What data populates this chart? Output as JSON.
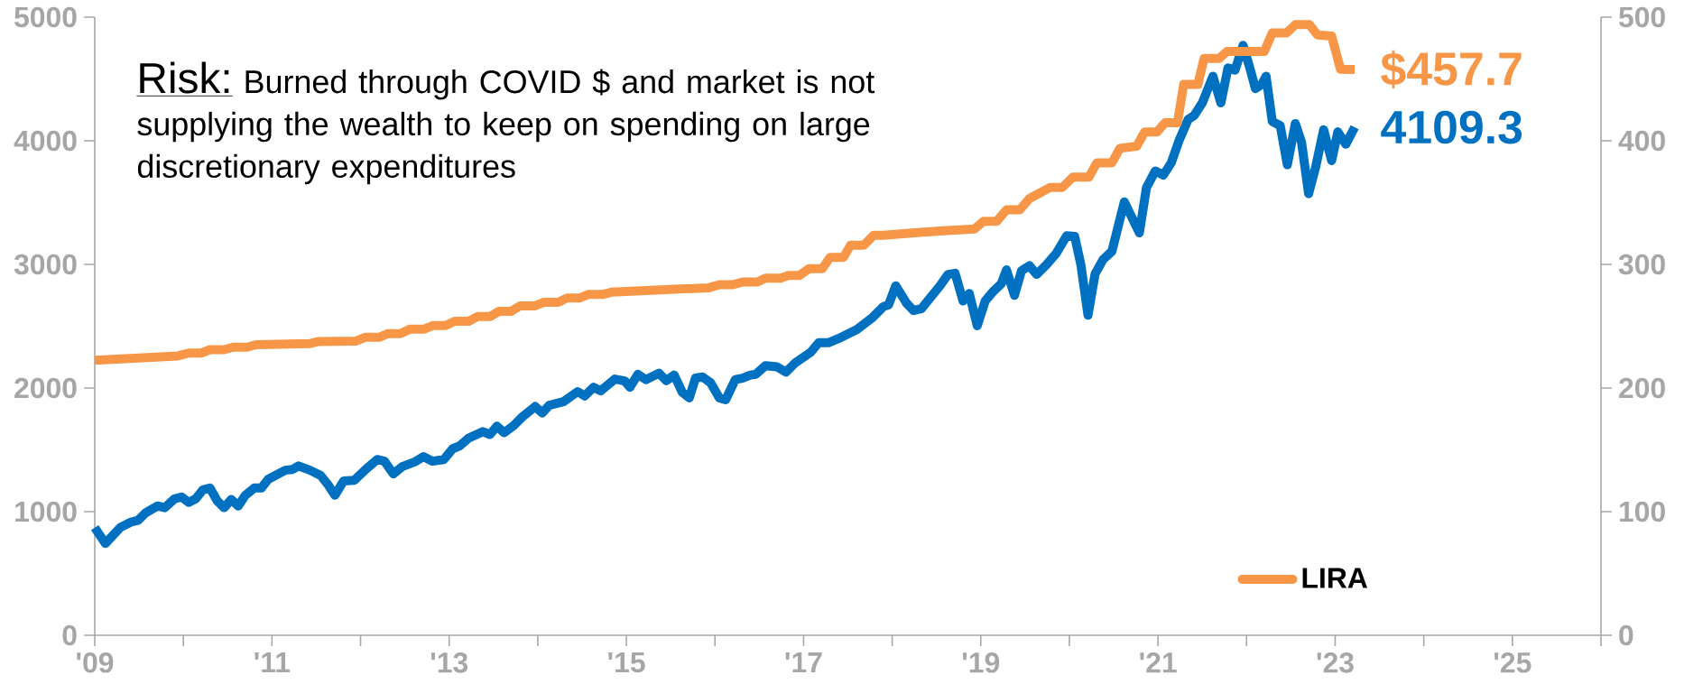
{
  "chart_data": {
    "type": "line",
    "annotations": [
      "Risk:",
      "Burned through COVID $ and market is not supplying the wealth to keep on spending on large discretionary expenditures"
    ],
    "xlim": [
      2009,
      2026
    ],
    "xticks": [
      {
        "value": 2009,
        "label": "'09"
      },
      {
        "value": 2010,
        "label": null
      },
      {
        "value": 2011,
        "label": "'11"
      },
      {
        "value": 2012,
        "label": null
      },
      {
        "value": 2013,
        "label": "'13"
      },
      {
        "value": 2014,
        "label": null
      },
      {
        "value": 2015,
        "label": "'15"
      },
      {
        "value": 2016,
        "label": null
      },
      {
        "value": 2017,
        "label": "'17"
      },
      {
        "value": 2018,
        "label": null
      },
      {
        "value": 2019,
        "label": "'19"
      },
      {
        "value": 2020,
        "label": null
      },
      {
        "value": 2021,
        "label": "'21"
      },
      {
        "value": 2022,
        "label": null
      },
      {
        "value": 2023,
        "label": "'23"
      },
      {
        "value": 2024,
        "label": null
      },
      {
        "value": 2025,
        "label": "'25"
      },
      {
        "value": 2026,
        "label": null
      }
    ],
    "ylim": [
      0,
      5000
    ],
    "yticks": [
      0,
      1000,
      2000,
      3000,
      4000,
      5000
    ],
    "y2lim": [
      0,
      500
    ],
    "y2ticks": [
      0,
      100,
      200,
      300,
      400,
      500
    ],
    "legend": "bottom right",
    "marker": "none",
    "series": [
      {
        "color": "#0070c0",
        "x": [
          2009.0,
          2009.12,
          2009.29,
          2009.41,
          2009.49,
          2009.57,
          2009.71,
          2009.79,
          2009.9,
          2009.98,
          2010.06,
          2010.14,
          2010.22,
          2010.3,
          2010.38,
          2010.46,
          2010.54,
          2010.62,
          2010.7,
          2010.8,
          2010.88,
          2010.96,
          2011.15,
          2011.23,
          2011.3,
          2011.43,
          2011.55,
          2011.63,
          2011.71,
          2011.81,
          2011.93,
          2012.07,
          2012.19,
          2012.27,
          2012.37,
          2012.47,
          2012.61,
          2012.71,
          2012.81,
          2012.94,
          2013.04,
          2013.12,
          2013.22,
          2013.38,
          2013.46,
          2013.54,
          2013.62,
          2013.73,
          2013.83,
          2013.97,
          2014.05,
          2014.13,
          2014.29,
          2014.45,
          2014.53,
          2014.63,
          2014.71,
          2014.87,
          2014.98,
          2015.04,
          2015.13,
          2015.22,
          2015.37,
          2015.45,
          2015.54,
          2015.63,
          2015.71,
          2015.78,
          2015.86,
          2015.95,
          2016.05,
          2016.12,
          2016.23,
          2016.31,
          2016.4,
          2016.46,
          2016.57,
          2016.7,
          2016.8,
          2016.91,
          2017.08,
          2017.17,
          2017.28,
          2017.43,
          2017.6,
          2017.77,
          2017.9,
          2017.96,
          2018.04,
          2018.16,
          2018.24,
          2018.33,
          2018.41,
          2018.54,
          2018.63,
          2018.71,
          2018.8,
          2018.87,
          2018.96,
          2019.05,
          2019.14,
          2019.23,
          2019.29,
          2019.38,
          2019.46,
          2019.55,
          2019.63,
          2019.74,
          2019.85,
          2019.97,
          2020.06,
          2020.13,
          2020.21,
          2020.29,
          2020.38,
          2020.48,
          2020.62,
          2020.71,
          2020.79,
          2020.87,
          2020.97,
          2021.06,
          2021.15,
          2021.24,
          2021.34,
          2021.41,
          2021.5,
          2021.62,
          2021.71,
          2021.79,
          2021.87,
          2021.96,
          2022.03,
          2022.1,
          2022.17,
          2022.22,
          2022.29,
          2022.38,
          2022.46,
          2022.55,
          2022.62,
          2022.7,
          2022.78,
          2022.87,
          2022.96,
          2023.03,
          2023.12,
          2023.22
        ],
        "values": [
          870,
          743,
          873,
          916,
          930,
          988,
          1046,
          1032,
          1104,
          1118,
          1075,
          1104,
          1176,
          1191,
          1090,
          1032,
          1098,
          1046,
          1133,
          1191,
          1191,
          1263,
          1335,
          1341,
          1370,
          1335,
          1292,
          1220,
          1133,
          1249,
          1254,
          1350,
          1422,
          1408,
          1306,
          1364,
          1402,
          1445,
          1408,
          1422,
          1509,
          1532,
          1595,
          1647,
          1624,
          1691,
          1639,
          1697,
          1769,
          1850,
          1798,
          1861,
          1890,
          1971,
          1936,
          2006,
          1977,
          2072,
          2058,
          2006,
          2111,
          2068,
          2120,
          2059,
          2105,
          1966,
          1920,
          2080,
          2089,
          2043,
          1920,
          1905,
          2068,
          2080,
          2105,
          2111,
          2181,
          2172,
          2129,
          2206,
          2289,
          2366,
          2366,
          2412,
          2473,
          2565,
          2658,
          2673,
          2827,
          2688,
          2627,
          2642,
          2713,
          2827,
          2919,
          2928,
          2704,
          2765,
          2504,
          2704,
          2781,
          2842,
          2956,
          2750,
          2949,
          2989,
          2919,
          2996,
          3088,
          3232,
          3226,
          2996,
          2589,
          2922,
          3039,
          3106,
          3506,
          3373,
          3256,
          3622,
          3756,
          3722,
          3822,
          4006,
          4172,
          4206,
          4306,
          4522,
          4306,
          4589,
          4572,
          4772,
          4606,
          4422,
          4456,
          4522,
          4156,
          4122,
          3806,
          4139,
          3989,
          3572,
          3789,
          4089,
          3839,
          4072,
          3972,
          4109.3
        ],
        "value_labels": [
          null,
          null,
          null,
          null,
          null,
          null,
          null,
          null,
          null,
          null,
          null,
          null,
          null,
          null,
          null,
          null,
          null,
          null,
          null,
          null,
          null,
          null,
          null,
          null,
          null,
          null,
          null,
          null,
          null,
          null,
          null,
          null,
          null,
          null,
          null,
          null,
          null,
          null,
          null,
          null,
          null,
          null,
          null,
          null,
          null,
          null,
          null,
          null,
          null,
          null,
          null,
          null,
          null,
          null,
          null,
          null,
          null,
          null,
          null,
          null,
          null,
          null,
          null,
          null,
          null,
          null,
          null,
          null,
          null,
          null,
          null,
          null,
          null,
          null,
          null,
          null,
          null,
          null,
          null,
          null,
          null,
          null,
          null,
          null,
          null,
          null,
          null,
          null,
          null,
          null,
          null,
          null,
          null,
          null,
          null,
          null,
          null,
          null,
          null,
          null,
          null,
          null,
          null,
          null,
          null,
          null,
          null,
          null,
          null,
          null,
          null,
          null,
          null,
          null,
          null,
          null,
          null,
          null,
          null,
          null,
          null,
          null,
          null,
          null,
          null,
          null,
          null,
          null,
          null,
          null,
          null,
          null,
          null,
          null,
          null,
          null,
          null,
          null,
          null,
          null,
          null,
          null,
          null,
          null,
          null,
          null,
          null,
          "4109.3"
        ]
      },
      {
        "name": "LIRA",
        "axis": "y2",
        "color": "#f79646",
        "x": [
          2009.0,
          2009.94,
          2010.06,
          2010.2,
          2010.3,
          2010.46,
          2010.56,
          2010.72,
          2010.82,
          2011.43,
          2011.53,
          2011.95,
          2012.05,
          2012.21,
          2012.31,
          2012.45,
          2012.56,
          2012.72,
          2012.82,
          2012.96,
          2013.06,
          2013.22,
          2013.32,
          2013.46,
          2013.56,
          2013.7,
          2013.8,
          2013.97,
          2014.07,
          2014.23,
          2014.33,
          2014.47,
          2014.57,
          2014.73,
          2014.83,
          2015.16,
          2015.93,
          2016.05,
          2016.2,
          2016.31,
          2016.48,
          2016.57,
          2016.74,
          2016.83,
          2016.95,
          2017.06,
          2017.21,
          2017.3,
          2017.45,
          2017.53,
          2017.68,
          2017.79,
          2017.9,
          2018.28,
          2018.58,
          2018.93,
          2019.03,
          2019.18,
          2019.29,
          2019.44,
          2019.55,
          2019.78,
          2019.92,
          2020.04,
          2020.22,
          2020.31,
          2020.48,
          2020.57,
          2020.76,
          2020.85,
          2020.99,
          2021.08,
          2021.22,
          2021.29,
          2021.45,
          2021.52,
          2021.69,
          2021.78,
          2022.2,
          2022.29,
          2022.45,
          2022.55,
          2022.71,
          2022.8,
          2022.96,
          2023.06,
          2023.22
        ],
        "values": [
          222.5,
          226,
          228.3,
          228.3,
          231,
          231,
          233,
          233,
          235,
          236,
          237.6,
          238,
          241,
          241,
          244,
          244,
          247.7,
          247.7,
          250.6,
          250.6,
          254,
          254,
          257.8,
          257.8,
          262,
          262,
          266.5,
          266.5,
          269.4,
          269.4,
          272.8,
          272.8,
          275.7,
          275.7,
          277.5,
          278.6,
          281.1,
          283.6,
          283.6,
          285.7,
          285.7,
          288.8,
          288.8,
          291,
          291,
          296.5,
          296.5,
          305.7,
          305.7,
          315.5,
          315.5,
          323.5,
          323.5,
          325.7,
          327.2,
          328.7,
          334.9,
          334.9,
          344.1,
          344.1,
          353.3,
          362.2,
          362.2,
          370.6,
          370.6,
          382.2,
          382.2,
          393.9,
          395.6,
          407.2,
          407.2,
          414.6,
          414.6,
          445.6,
          445.6,
          466.6,
          466.6,
          472.2,
          472.2,
          487.2,
          487.2,
          493.9,
          493.9,
          485.6,
          484.6,
          457.9,
          457.7
        ],
        "value_labels": [
          null,
          null,
          null,
          null,
          null,
          null,
          null,
          null,
          null,
          null,
          null,
          null,
          null,
          null,
          null,
          null,
          null,
          null,
          null,
          null,
          null,
          null,
          null,
          null,
          null,
          null,
          null,
          null,
          null,
          null,
          null,
          null,
          null,
          null,
          null,
          null,
          null,
          null,
          null,
          null,
          null,
          null,
          null,
          null,
          null,
          null,
          null,
          null,
          null,
          null,
          null,
          null,
          null,
          null,
          null,
          null,
          null,
          null,
          null,
          null,
          null,
          null,
          null,
          null,
          null,
          null,
          null,
          null,
          null,
          null,
          null,
          null,
          null,
          null,
          null,
          null,
          null,
          null,
          null,
          null,
          null,
          null,
          null,
          null,
          null,
          null,
          "$457.7"
        ]
      }
    ]
  }
}
